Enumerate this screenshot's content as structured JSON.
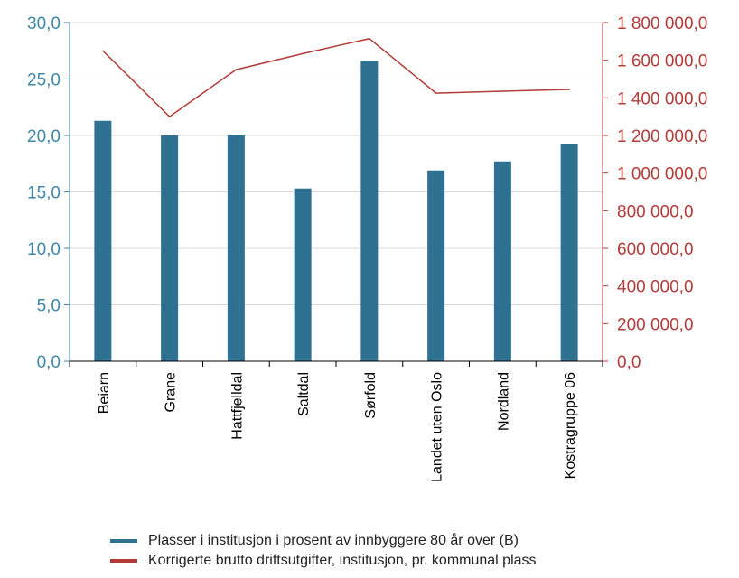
{
  "colors": {
    "bar": "#2e7191",
    "line": "#b33c38",
    "left_axis": "#3f87a8",
    "right_axis": "#b33c38",
    "grid": "#d9d9d9"
  },
  "chart_data": {
    "type": "bar",
    "categories": [
      "Beiarn",
      "Grane",
      "Hattfjelldal",
      "Saltdal",
      "Sørfold",
      "Landet uten Oslo",
      "Nordland",
      "Kostragruppe 06"
    ],
    "series": [
      {
        "name": "Plasser i institusjon i prosent av innbyggere 80 år over (B)",
        "type": "bar",
        "axis": "left",
        "values": [
          21.3,
          20.0,
          20.0,
          15.3,
          26.6,
          16.9,
          17.7,
          19.2
        ]
      },
      {
        "name": "Korrigerte brutto driftsutgifter, institusjon, pr. kommunal plass",
        "type": "line",
        "axis": "right",
        "values": [
          1650000,
          1300000,
          1550000,
          1635000,
          1715000,
          1425000,
          1435000,
          1445000
        ]
      }
    ],
    "y_left": {
      "ylim": [
        0,
        30
      ],
      "ticks": [
        0,
        5,
        10,
        15,
        20,
        25,
        30
      ],
      "tick_labels": [
        "0,0",
        "5,0",
        "10,0",
        "15,0",
        "20,0",
        "25,0",
        "30,0"
      ]
    },
    "y_right": {
      "ylim": [
        0,
        1800000
      ],
      "ticks": [
        0,
        200000,
        400000,
        600000,
        800000,
        1000000,
        1200000,
        1400000,
        1600000,
        1800000
      ],
      "tick_labels": [
        "0,0",
        "200 000,0",
        "400 000,0",
        "600 000,0",
        "800 000,0",
        "1 000 000,0",
        "1 200 000,0",
        "1 400 000,0",
        "1 600 000,0",
        "1 800 000,0"
      ]
    },
    "grid": true,
    "legend_position": "bottom"
  }
}
